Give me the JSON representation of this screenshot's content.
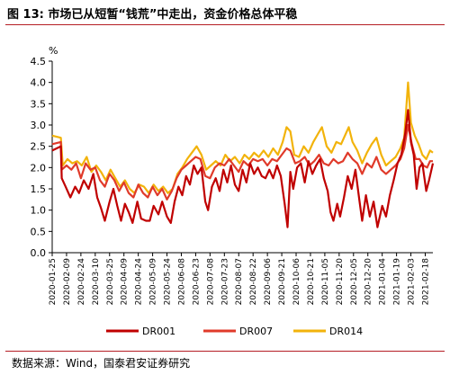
{
  "header": {
    "title": "图 13:  市场已从短暂“钱荒”中走出，资金价格总体平稳"
  },
  "footer": {
    "source": "数据来源：Wind，国泰君安证券研究"
  },
  "colors": {
    "rule": "#b51e24",
    "DR001": "#c00000",
    "DR007": "#e03a2a",
    "DR014": "#f2b30b"
  },
  "chart_data": {
    "type": "line",
    "title": "",
    "xlabel": "",
    "ylabel": "%",
    "ylim": [
      0.0,
      4.5
    ],
    "yticks": [
      "0.0",
      "0.5",
      "1.0",
      "1.5",
      "2.0",
      "2.5",
      "3.0",
      "3.5",
      "4.0",
      "4.5"
    ],
    "legend_position": "bottom-center",
    "grid": false,
    "xtick_labels": [
      "2020-01-25",
      "2020-02-09",
      "2020-02-24",
      "2020-03-10",
      "2020-03-25",
      "2020-04-09",
      "2020-04-24",
      "2020-05-09",
      "2020-05-24",
      "2020-06-08",
      "2020-06-23",
      "2020-07-08",
      "2020-07-23",
      "2020-08-07",
      "2020-08-22",
      "2020-09-06",
      "2020-09-21",
      "2020-10-06",
      "2020-10-21",
      "2020-11-05",
      "2020-11-20",
      "2020-12-05",
      "2020-12-20",
      "2021-01-04",
      "2021-01-19",
      "2021-02-03",
      "2021-02-18"
    ],
    "x_start": "2020-01-25",
    "x_end": "2021-02-26",
    "series": [
      {
        "name": "DR001",
        "color_key": "DR001",
        "points": [
          [
            "2020-01-25",
            2.4
          ],
          [
            "2020-02-03",
            2.5
          ],
          [
            "2020-02-04",
            1.75
          ],
          [
            "2020-02-08",
            1.55
          ],
          [
            "2020-02-13",
            1.3
          ],
          [
            "2020-02-18",
            1.55
          ],
          [
            "2020-02-22",
            1.4
          ],
          [
            "2020-02-27",
            1.7
          ],
          [
            "2020-03-03",
            1.5
          ],
          [
            "2020-03-08",
            1.85
          ],
          [
            "2020-03-12",
            1.3
          ],
          [
            "2020-03-16",
            1.05
          ],
          [
            "2020-03-20",
            0.75
          ],
          [
            "2020-03-25",
            1.2
          ],
          [
            "2020-03-29",
            1.5
          ],
          [
            "2020-04-02",
            1.1
          ],
          [
            "2020-04-06",
            0.75
          ],
          [
            "2020-04-10",
            1.15
          ],
          [
            "2020-04-14",
            0.95
          ],
          [
            "2020-04-18",
            0.7
          ],
          [
            "2020-04-23",
            1.2
          ],
          [
            "2020-04-27",
            0.8
          ],
          [
            "2020-05-02",
            0.75
          ],
          [
            "2020-05-06",
            0.75
          ],
          [
            "2020-05-10",
            1.1
          ],
          [
            "2020-05-15",
            0.9
          ],
          [
            "2020-05-19",
            1.2
          ],
          [
            "2020-05-24",
            0.85
          ],
          [
            "2020-05-28",
            0.7
          ],
          [
            "2020-06-01",
            1.2
          ],
          [
            "2020-06-05",
            1.55
          ],
          [
            "2020-06-09",
            1.35
          ],
          [
            "2020-06-13",
            1.8
          ],
          [
            "2020-06-17",
            1.6
          ],
          [
            "2020-06-21",
            2.05
          ],
          [
            "2020-06-25",
            1.85
          ],
          [
            "2020-06-29",
            2.0
          ],
          [
            "2020-07-03",
            1.2
          ],
          [
            "2020-07-06",
            1.0
          ],
          [
            "2020-07-10",
            1.55
          ],
          [
            "2020-07-14",
            1.75
          ],
          [
            "2020-07-18",
            1.45
          ],
          [
            "2020-07-22",
            1.95
          ],
          [
            "2020-07-26",
            1.65
          ],
          [
            "2020-07-30",
            2.05
          ],
          [
            "2020-08-03",
            1.6
          ],
          [
            "2020-08-07",
            1.45
          ],
          [
            "2020-08-11",
            1.95
          ],
          [
            "2020-08-15",
            1.65
          ],
          [
            "2020-08-19",
            2.1
          ],
          [
            "2020-08-23",
            1.85
          ],
          [
            "2020-08-27",
            2.0
          ],
          [
            "2020-08-31",
            1.8
          ],
          [
            "2020-09-04",
            1.75
          ],
          [
            "2020-09-08",
            1.95
          ],
          [
            "2020-09-12",
            1.75
          ],
          [
            "2020-09-16",
            2.05
          ],
          [
            "2020-09-20",
            1.8
          ],
          [
            "2020-09-24",
            1.15
          ],
          [
            "2020-09-27",
            0.6
          ],
          [
            "2020-09-30",
            1.9
          ],
          [
            "2020-10-03",
            1.5
          ],
          [
            "2020-10-07",
            2.0
          ],
          [
            "2020-10-11",
            2.1
          ],
          [
            "2020-10-15",
            1.65
          ],
          [
            "2020-10-19",
            2.15
          ],
          [
            "2020-10-23",
            1.85
          ],
          [
            "2020-10-27",
            2.05
          ],
          [
            "2020-10-31",
            2.2
          ],
          [
            "2020-11-04",
            1.75
          ],
          [
            "2020-11-08",
            1.45
          ],
          [
            "2020-11-11",
            0.95
          ],
          [
            "2020-11-14",
            0.75
          ],
          [
            "2020-11-18",
            1.15
          ],
          [
            "2020-11-21",
            0.85
          ],
          [
            "2020-11-25",
            1.3
          ],
          [
            "2020-11-29",
            1.8
          ],
          [
            "2020-12-03",
            1.5
          ],
          [
            "2020-12-07",
            1.95
          ],
          [
            "2020-12-11",
            1.25
          ],
          [
            "2020-12-14",
            0.75
          ],
          [
            "2020-12-18",
            1.35
          ],
          [
            "2020-12-22",
            0.85
          ],
          [
            "2020-12-26",
            1.2
          ],
          [
            "2020-12-30",
            0.6
          ],
          [
            "2021-01-04",
            1.1
          ],
          [
            "2021-01-08",
            0.85
          ],
          [
            "2021-01-12",
            1.35
          ],
          [
            "2021-01-16",
            1.7
          ],
          [
            "2021-01-20",
            2.1
          ],
          [
            "2021-01-24",
            2.3
          ],
          [
            "2021-01-28",
            2.8
          ],
          [
            "2021-01-31",
            3.35
          ],
          [
            "2021-02-03",
            2.6
          ],
          [
            "2021-02-06",
            2.3
          ],
          [
            "2021-02-09",
            1.5
          ],
          [
            "2021-02-12",
            2.0
          ],
          [
            "2021-02-15",
            2.1
          ],
          [
            "2021-02-19",
            1.45
          ],
          [
            "2021-02-22",
            1.7
          ],
          [
            "2021-02-26",
            2.1
          ]
        ]
      },
      {
        "name": "DR007",
        "color_key": "DR007",
        "points": [
          [
            "2020-01-25",
            2.55
          ],
          [
            "2020-02-03",
            2.6
          ],
          [
            "2020-02-04",
            1.95
          ],
          [
            "2020-02-09",
            2.05
          ],
          [
            "2020-02-14",
            1.95
          ],
          [
            "2020-02-19",
            2.1
          ],
          [
            "2020-02-24",
            1.75
          ],
          [
            "2020-02-29",
            2.1
          ],
          [
            "2020-03-05",
            1.95
          ],
          [
            "2020-03-10",
            2.0
          ],
          [
            "2020-03-15",
            1.7
          ],
          [
            "2020-03-20",
            1.55
          ],
          [
            "2020-03-25",
            1.85
          ],
          [
            "2020-03-30",
            1.7
          ],
          [
            "2020-04-04",
            1.45
          ],
          [
            "2020-04-09",
            1.65
          ],
          [
            "2020-04-14",
            1.4
          ],
          [
            "2020-04-19",
            1.3
          ],
          [
            "2020-04-24",
            1.6
          ],
          [
            "2020-04-29",
            1.4
          ],
          [
            "2020-05-04",
            1.3
          ],
          [
            "2020-05-09",
            1.55
          ],
          [
            "2020-05-14",
            1.35
          ],
          [
            "2020-05-19",
            1.5
          ],
          [
            "2020-05-24",
            1.25
          ],
          [
            "2020-05-29",
            1.45
          ],
          [
            "2020-06-03",
            1.75
          ],
          [
            "2020-06-08",
            1.95
          ],
          [
            "2020-06-13",
            2.05
          ],
          [
            "2020-06-18",
            2.15
          ],
          [
            "2020-06-23",
            2.25
          ],
          [
            "2020-06-28",
            2.2
          ],
          [
            "2020-07-03",
            1.8
          ],
          [
            "2020-07-08",
            1.75
          ],
          [
            "2020-07-13",
            2.0
          ],
          [
            "2020-07-18",
            2.1
          ],
          [
            "2020-07-23",
            2.05
          ],
          [
            "2020-07-28",
            2.2
          ],
          [
            "2020-08-02",
            2.05
          ],
          [
            "2020-08-07",
            1.9
          ],
          [
            "2020-08-12",
            2.15
          ],
          [
            "2020-08-17",
            2.05
          ],
          [
            "2020-08-22",
            2.2
          ],
          [
            "2020-08-27",
            2.15
          ],
          [
            "2020-09-01",
            2.2
          ],
          [
            "2020-09-06",
            2.05
          ],
          [
            "2020-09-11",
            2.2
          ],
          [
            "2020-09-16",
            2.15
          ],
          [
            "2020-09-21",
            2.3
          ],
          [
            "2020-09-26",
            2.45
          ],
          [
            "2020-09-30",
            2.4
          ],
          [
            "2020-10-05",
            2.1
          ],
          [
            "2020-10-10",
            2.15
          ],
          [
            "2020-10-15",
            2.25
          ],
          [
            "2020-10-20",
            2.05
          ],
          [
            "2020-10-25",
            2.15
          ],
          [
            "2020-10-30",
            2.3
          ],
          [
            "2020-11-04",
            2.1
          ],
          [
            "2020-11-09",
            2.05
          ],
          [
            "2020-11-14",
            2.2
          ],
          [
            "2020-11-19",
            2.1
          ],
          [
            "2020-11-24",
            2.15
          ],
          [
            "2020-11-29",
            2.35
          ],
          [
            "2020-12-04",
            2.2
          ],
          [
            "2020-12-09",
            2.1
          ],
          [
            "2020-12-14",
            1.85
          ],
          [
            "2020-12-19",
            2.1
          ],
          [
            "2020-12-24",
            2.0
          ],
          [
            "2020-12-29",
            2.25
          ],
          [
            "2021-01-03",
            1.95
          ],
          [
            "2021-01-08",
            1.85
          ],
          [
            "2021-01-13",
            1.95
          ],
          [
            "2021-01-18",
            2.05
          ],
          [
            "2021-01-23",
            2.2
          ],
          [
            "2021-01-27",
            2.45
          ],
          [
            "2021-01-31",
            3.0
          ],
          [
            "2021-02-04",
            2.55
          ],
          [
            "2021-02-08",
            2.2
          ],
          [
            "2021-02-12",
            2.2
          ],
          [
            "2021-02-16",
            2.05
          ],
          [
            "2021-02-20",
            2.0
          ],
          [
            "2021-02-23",
            2.15
          ],
          [
            "2021-02-26",
            2.15
          ]
        ]
      },
      {
        "name": "DR014",
        "color_key": "DR014",
        "points": [
          [
            "2020-01-25",
            2.75
          ],
          [
            "2020-02-03",
            2.7
          ],
          [
            "2020-02-05",
            2.05
          ],
          [
            "2020-02-10",
            2.2
          ],
          [
            "2020-02-15",
            2.1
          ],
          [
            "2020-02-20",
            2.15
          ],
          [
            "2020-02-25",
            2.05
          ],
          [
            "2020-03-01",
            2.25
          ],
          [
            "2020-03-06",
            1.9
          ],
          [
            "2020-03-11",
            2.05
          ],
          [
            "2020-03-16",
            1.9
          ],
          [
            "2020-03-21",
            1.7
          ],
          [
            "2020-03-26",
            1.95
          ],
          [
            "2020-03-31",
            1.75
          ],
          [
            "2020-04-05",
            1.55
          ],
          [
            "2020-04-10",
            1.7
          ],
          [
            "2020-04-15",
            1.5
          ],
          [
            "2020-04-20",
            1.4
          ],
          [
            "2020-04-25",
            1.6
          ],
          [
            "2020-04-30",
            1.55
          ],
          [
            "2020-05-05",
            1.4
          ],
          [
            "2020-05-10",
            1.6
          ],
          [
            "2020-05-15",
            1.45
          ],
          [
            "2020-05-20",
            1.55
          ],
          [
            "2020-05-25",
            1.4
          ],
          [
            "2020-05-30",
            1.5
          ],
          [
            "2020-06-04",
            1.85
          ],
          [
            "2020-06-09",
            2.0
          ],
          [
            "2020-06-14",
            2.2
          ],
          [
            "2020-06-19",
            2.35
          ],
          [
            "2020-06-24",
            2.5
          ],
          [
            "2020-06-29",
            2.3
          ],
          [
            "2020-07-04",
            1.95
          ],
          [
            "2020-07-09",
            2.05
          ],
          [
            "2020-07-14",
            2.15
          ],
          [
            "2020-07-19",
            2.05
          ],
          [
            "2020-07-24",
            2.3
          ],
          [
            "2020-07-29",
            2.15
          ],
          [
            "2020-08-03",
            2.25
          ],
          [
            "2020-08-08",
            2.1
          ],
          [
            "2020-08-13",
            2.3
          ],
          [
            "2020-08-18",
            2.2
          ],
          [
            "2020-08-23",
            2.35
          ],
          [
            "2020-08-28",
            2.25
          ],
          [
            "2020-09-02",
            2.4
          ],
          [
            "2020-09-07",
            2.25
          ],
          [
            "2020-09-12",
            2.45
          ],
          [
            "2020-09-17",
            2.3
          ],
          [
            "2020-09-22",
            2.6
          ],
          [
            "2020-09-26",
            2.95
          ],
          [
            "2020-09-30",
            2.85
          ],
          [
            "2020-10-04",
            2.3
          ],
          [
            "2020-10-09",
            2.25
          ],
          [
            "2020-10-14",
            2.5
          ],
          [
            "2020-10-19",
            2.35
          ],
          [
            "2020-10-24",
            2.6
          ],
          [
            "2020-10-29",
            2.8
          ],
          [
            "2020-11-02",
            2.95
          ],
          [
            "2020-11-07",
            2.5
          ],
          [
            "2020-11-12",
            2.35
          ],
          [
            "2020-11-17",
            2.6
          ],
          [
            "2020-11-22",
            2.55
          ],
          [
            "2020-11-27",
            2.8
          ],
          [
            "2020-11-30",
            2.95
          ],
          [
            "2020-12-04",
            2.6
          ],
          [
            "2020-12-09",
            2.4
          ],
          [
            "2020-12-14",
            2.1
          ],
          [
            "2020-12-19",
            2.35
          ],
          [
            "2020-12-24",
            2.55
          ],
          [
            "2020-12-29",
            2.7
          ],
          [
            "2021-01-03",
            2.3
          ],
          [
            "2021-01-08",
            2.05
          ],
          [
            "2021-01-13",
            2.15
          ],
          [
            "2021-01-18",
            2.25
          ],
          [
            "2021-01-23",
            2.45
          ],
          [
            "2021-01-27",
            2.7
          ],
          [
            "2021-01-31",
            4.0
          ],
          [
            "2021-02-03",
            3.05
          ],
          [
            "2021-02-07",
            2.75
          ],
          [
            "2021-02-11",
            2.55
          ],
          [
            "2021-02-15",
            2.3
          ],
          [
            "2021-02-19",
            2.2
          ],
          [
            "2021-02-23",
            2.4
          ],
          [
            "2021-02-26",
            2.35
          ]
        ]
      }
    ]
  }
}
